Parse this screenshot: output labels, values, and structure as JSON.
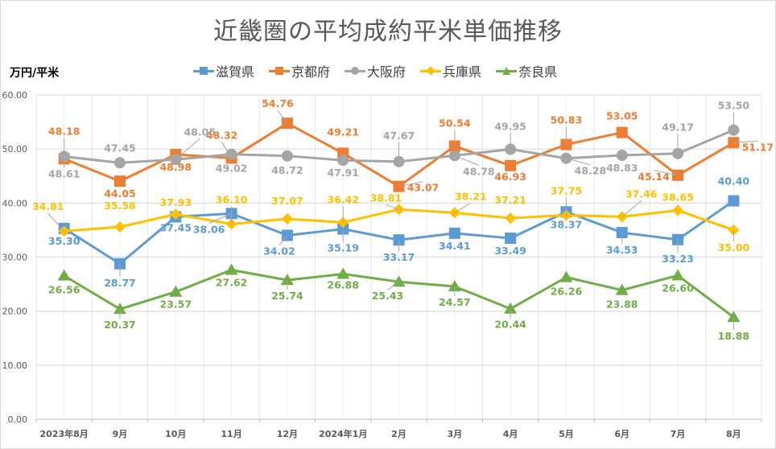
{
  "chart_data": {
    "type": "line",
    "title": "近畿圏の平均成約平米単価推移",
    "ylabel": "万円/平米",
    "xlabel": "",
    "ylim": [
      0,
      60
    ],
    "yticks": [
      "0.00",
      "10.00",
      "20.00",
      "30.00",
      "40.00",
      "50.00",
      "60.00"
    ],
    "ytick_values": [
      0,
      10,
      20,
      30,
      40,
      50,
      60
    ],
    "grid": true,
    "legend_position": "top",
    "categories": [
      "2023年8月",
      "9月",
      "10月",
      "11月",
      "12月",
      "2024年1月",
      "2月",
      "3月",
      "4月",
      "5月",
      "6月",
      "7月",
      "8月"
    ],
    "series": [
      {
        "name": "滋賀県",
        "color": "#5b9bd5",
        "marker": "square",
        "values": [
          35.3,
          28.77,
          37.45,
          38.06,
          34.02,
          35.19,
          33.17,
          34.41,
          33.49,
          38.37,
          34.53,
          33.23,
          40.4
        ],
        "labels": [
          "35.30",
          "28.77",
          "37.45",
          "38.06",
          "34.02",
          "35.19",
          "33.17",
          "34.41",
          "33.49",
          "38.37",
          "34.53",
          "33.23",
          "40.40"
        ]
      },
      {
        "name": "京都府",
        "color": "#ed7d31",
        "marker": "square",
        "values": [
          48.18,
          44.05,
          48.98,
          48.32,
          54.76,
          49.21,
          43.07,
          50.54,
          46.93,
          50.83,
          53.05,
          45.14,
          51.17
        ],
        "labels": [
          "48.18",
          "44.05",
          "48.98",
          "48.32",
          "54.76",
          "49.21",
          "43.07",
          "50.54",
          "46.93",
          "50.83",
          "53.05",
          "45.14",
          "51.17"
        ]
      },
      {
        "name": "大阪府",
        "color": "#a5a5a5",
        "marker": "circle",
        "values": [
          48.61,
          47.45,
          48.05,
          49.02,
          48.72,
          47.91,
          47.67,
          48.78,
          49.95,
          48.28,
          48.83,
          49.17,
          53.5
        ],
        "labels": [
          "48.61",
          "47.45",
          "48.05",
          "49.02",
          "48.72",
          "47.91",
          "47.67",
          "48.78",
          "49.95",
          "48.28",
          "48.83",
          "49.17",
          "53.50"
        ]
      },
      {
        "name": "兵庫県",
        "color": "#ffc000",
        "marker": "diamond",
        "values": [
          34.81,
          35.58,
          37.93,
          36.1,
          37.07,
          36.42,
          38.81,
          38.21,
          37.21,
          37.75,
          37.46,
          38.65,
          35.0
        ],
        "labels": [
          "34.81",
          "35.58",
          "37.93",
          "36.10",
          "37.07",
          "36.42",
          "38.81",
          "38.21",
          "37.21",
          "37.75",
          "37.46",
          "38.65",
          "35.00"
        ]
      },
      {
        "name": "奈良県",
        "color": "#70ad47",
        "marker": "triangle",
        "values": [
          26.56,
          20.37,
          23.57,
          27.62,
          25.74,
          26.88,
          25.43,
          24.57,
          20.44,
          26.26,
          23.88,
          26.6,
          18.88
        ],
        "labels": [
          "26.56",
          "20.37",
          "23.57",
          "27.62",
          "25.74",
          "26.88",
          "25.43",
          "24.57",
          "20.44",
          "26.26",
          "23.88",
          "26.60",
          "18.88"
        ]
      }
    ]
  }
}
